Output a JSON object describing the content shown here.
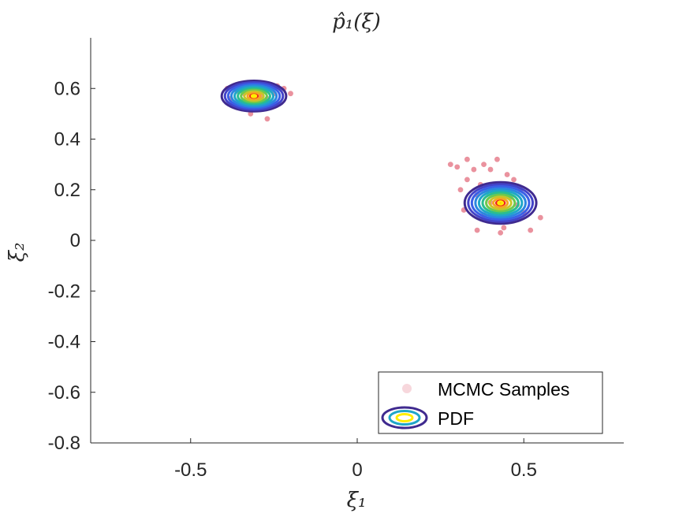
{
  "chart_data": {
    "type": "contour",
    "title": "p̂₁(ξ)",
    "xlabel": "ξ₁",
    "ylabel": "ξ₂",
    "xlim": [
      -0.8,
      0.8
    ],
    "ylim": [
      -0.8,
      0.8
    ],
    "x_ticks": [
      -0.5,
      0,
      0.5
    ],
    "x_tick_labels": [
      "-0.5",
      "0",
      "0.5"
    ],
    "y_ticks": [
      -0.8,
      -0.6,
      -0.4,
      -0.2,
      0,
      0.2,
      0.4,
      0.6
    ],
    "y_tick_labels": [
      "-0.8",
      "-0.6",
      "-0.4",
      "-0.2",
      "0",
      "0.2",
      "0.4",
      "0.6"
    ],
    "grid": false,
    "legend": {
      "position": "bottom-right",
      "entries": [
        "MCMC Samples",
        "PDF"
      ]
    },
    "modes": [
      {
        "name": "upper-left mode",
        "center": [
          -0.31,
          0.57
        ],
        "sx": 0.045,
        "sy": 0.028
      },
      {
        "name": "lower-right mode",
        "center": [
          0.43,
          0.148
        ],
        "sx": 0.05,
        "sy": 0.038
      }
    ],
    "contour_levels": 10,
    "contour_colors": [
      "#3f2a8f",
      "#4343c8",
      "#3a5fe6",
      "#2b86e0",
      "#1fa6c8",
      "#2bbd8f",
      "#6cc94f",
      "#c8c52a",
      "#f5a623",
      "#ef3e17"
    ],
    "peak_color": "#ffee00",
    "samples": [
      [
        -0.34,
        0.58
      ],
      [
        -0.32,
        0.55
      ],
      [
        -0.29,
        0.6
      ],
      [
        -0.27,
        0.56
      ],
      [
        -0.36,
        0.59
      ],
      [
        -0.3,
        0.53
      ],
      [
        -0.25,
        0.58
      ],
      [
        -0.33,
        0.61
      ],
      [
        -0.28,
        0.52
      ],
      [
        -0.38,
        0.56
      ],
      [
        -0.22,
        0.6
      ],
      [
        -0.2,
        0.58
      ],
      [
        -0.27,
        0.48
      ],
      [
        -0.35,
        0.53
      ],
      [
        -0.31,
        0.62
      ],
      [
        -0.26,
        0.54
      ],
      [
        -0.39,
        0.6
      ],
      [
        -0.29,
        0.57
      ],
      [
        -0.32,
        0.5
      ],
      [
        -0.24,
        0.61
      ],
      [
        0.4,
        0.15
      ],
      [
        0.43,
        0.12
      ],
      [
        0.46,
        0.17
      ],
      [
        0.38,
        0.1
      ],
      [
        0.45,
        0.19
      ],
      [
        0.41,
        0.08
      ],
      [
        0.48,
        0.14
      ],
      [
        0.36,
        0.18
      ],
      [
        0.44,
        0.05
      ],
      [
        0.5,
        0.11
      ],
      [
        0.33,
        0.24
      ],
      [
        0.35,
        0.28
      ],
      [
        0.38,
        0.3
      ],
      [
        0.42,
        0.32
      ],
      [
        0.3,
        0.29
      ],
      [
        0.28,
        0.3
      ],
      [
        0.33,
        0.32
      ],
      [
        0.4,
        0.28
      ],
      [
        0.37,
        0.22
      ],
      [
        0.47,
        0.24
      ],
      [
        0.52,
        0.04
      ],
      [
        0.43,
        0.03
      ],
      [
        0.32,
        0.12
      ],
      [
        0.55,
        0.09
      ],
      [
        0.39,
        0.2
      ],
      [
        0.45,
        0.26
      ],
      [
        0.36,
        0.04
      ],
      [
        0.49,
        0.2
      ],
      [
        0.31,
        0.2
      ],
      [
        0.42,
        0.22
      ]
    ]
  }
}
